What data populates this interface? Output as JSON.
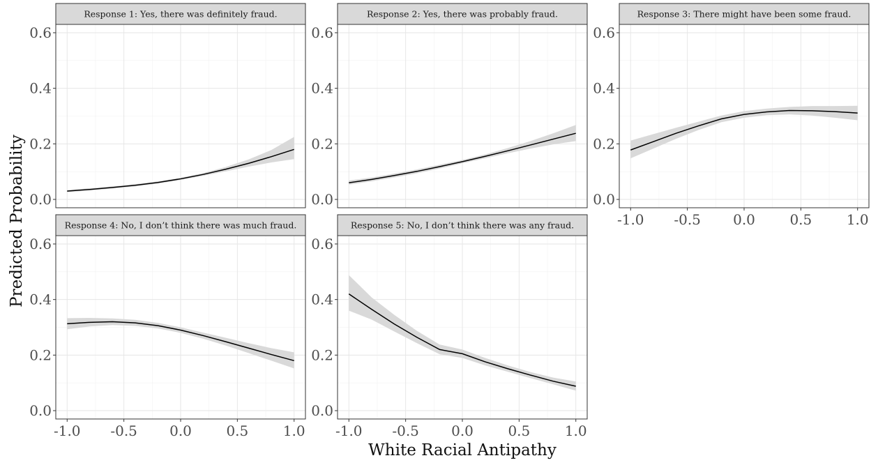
{
  "chart_data": {
    "type": "line",
    "xlabel": "White Racial Antipathy",
    "ylabel": "Predicted Probability",
    "xlim": [
      -1.0,
      1.0
    ],
    "ylim": [
      0.0,
      0.6
    ],
    "x_ticks": [
      "-1.0",
      "-0.5",
      "0.0",
      "0.5",
      "1.0"
    ],
    "y_ticks": [
      "0.0",
      "0.2",
      "0.4",
      "0.6"
    ],
    "grid": true,
    "line_color": "#000000",
    "band_color": "#d9d9d9",
    "x": [
      -1.0,
      -0.8,
      -0.6,
      -0.4,
      -0.2,
      0.0,
      0.2,
      0.4,
      0.6,
      0.8,
      1.0
    ],
    "panels": [
      {
        "title": "Response 1: Yes, there was definitely fraud.",
        "y": [
          0.03,
          0.036,
          0.043,
          0.051,
          0.061,
          0.074,
          0.09,
          0.109,
          0.13,
          0.154,
          0.18
        ],
        "lower": [
          0.026,
          0.032,
          0.039,
          0.047,
          0.057,
          0.07,
          0.085,
          0.101,
          0.118,
          0.133,
          0.145
        ],
        "upper": [
          0.034,
          0.04,
          0.047,
          0.055,
          0.065,
          0.078,
          0.095,
          0.117,
          0.144,
          0.178,
          0.225
        ]
      },
      {
        "title": "Response 2: Yes, there was probably fraud.",
        "y": [
          0.06,
          0.072,
          0.086,
          0.101,
          0.118,
          0.136,
          0.155,
          0.175,
          0.196,
          0.217,
          0.238
        ],
        "lower": [
          0.053,
          0.065,
          0.079,
          0.094,
          0.111,
          0.13,
          0.148,
          0.166,
          0.183,
          0.198,
          0.21
        ],
        "upper": [
          0.068,
          0.079,
          0.093,
          0.108,
          0.125,
          0.142,
          0.162,
          0.185,
          0.21,
          0.238,
          0.268
        ]
      },
      {
        "title": "Response 3: There might have been some fraud.",
        "y": [
          0.178,
          0.208,
          0.238,
          0.265,
          0.29,
          0.306,
          0.315,
          0.32,
          0.319,
          0.316,
          0.311
        ],
        "lower": [
          0.148,
          0.183,
          0.218,
          0.25,
          0.278,
          0.294,
          0.303,
          0.306,
          0.302,
          0.294,
          0.285
        ],
        "upper": [
          0.212,
          0.235,
          0.258,
          0.28,
          0.302,
          0.318,
          0.327,
          0.333,
          0.336,
          0.336,
          0.337
        ]
      },
      {
        "title": "Response 4: No, I don’t think there was much fraud.",
        "y": [
          0.313,
          0.318,
          0.32,
          0.316,
          0.306,
          0.29,
          0.27,
          0.248,
          0.225,
          0.202,
          0.18
        ],
        "lower": [
          0.293,
          0.303,
          0.308,
          0.305,
          0.296,
          0.28,
          0.259,
          0.234,
          0.207,
          0.18,
          0.152
        ],
        "upper": [
          0.333,
          0.334,
          0.332,
          0.327,
          0.316,
          0.3,
          0.281,
          0.262,
          0.243,
          0.225,
          0.21
        ]
      },
      {
        "title": "Response 5: No, I don’t think there was any fraud.",
        "y": [
          0.42,
          0.365,
          0.312,
          0.264,
          0.22,
          0.205,
          0.176,
          0.151,
          0.128,
          0.106,
          0.088
        ],
        "lower": [
          0.36,
          0.328,
          0.285,
          0.243,
          0.203,
          0.19,
          0.163,
          0.14,
          0.117,
          0.095,
          0.072
        ],
        "upper": [
          0.488,
          0.408,
          0.345,
          0.287,
          0.238,
          0.22,
          0.19,
          0.163,
          0.139,
          0.119,
          0.105
        ]
      }
    ]
  }
}
